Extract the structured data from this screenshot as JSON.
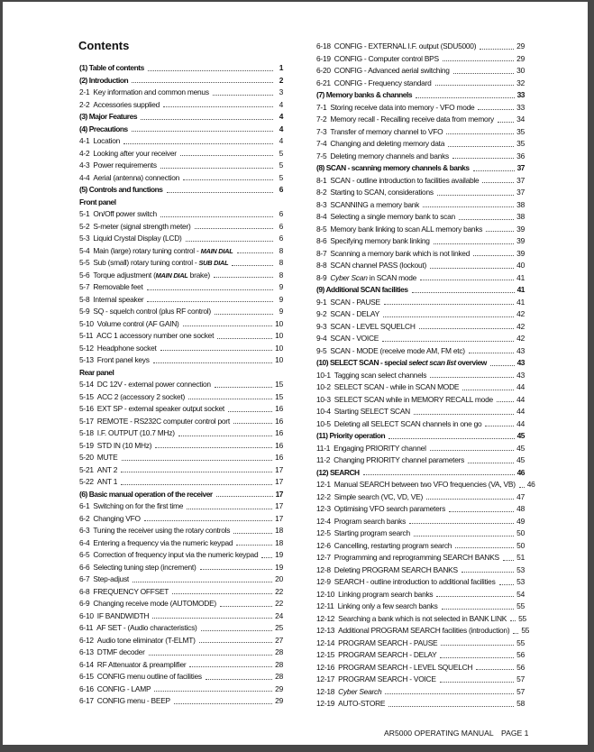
{
  "title": "Contents",
  "footer": {
    "manual": "AR5000 OPERATING MANUAL",
    "page": "PAGE 1"
  },
  "columns": {
    "left": [
      {
        "type": "section",
        "title": "(1) Table of contents",
        "page": "1"
      },
      {
        "type": "section",
        "title": "(2) Introduction",
        "page": "2"
      },
      {
        "type": "item",
        "num": "2-1",
        "title": "Key information and common menus",
        "page": "3"
      },
      {
        "type": "item",
        "num": "2-2",
        "title": "Accessories supplied",
        "page": "4"
      },
      {
        "type": "section",
        "title": "(3) Major Features",
        "page": "4"
      },
      {
        "type": "section",
        "title": "(4) Precautions",
        "page": "4"
      },
      {
        "type": "item",
        "num": "4-1",
        "title": "Location",
        "page": "4"
      },
      {
        "type": "item",
        "num": "4-2",
        "title": "Looking after your receiver",
        "page": "5"
      },
      {
        "type": "item",
        "num": "4-3",
        "title": "Power requirements",
        "page": "5"
      },
      {
        "type": "item",
        "num": "4-4",
        "title": "Aerial (antenna) connection",
        "page": "5"
      },
      {
        "type": "section",
        "title": "(5) Controls and functions",
        "page": "6"
      },
      {
        "type": "subhead",
        "title": "Front panel"
      },
      {
        "type": "item",
        "num": "5-1",
        "title": "On/Off power switch",
        "page": "6"
      },
      {
        "type": "item",
        "num": "5-2",
        "title": "S-meter (signal strength meter)",
        "page": "6"
      },
      {
        "type": "item",
        "num": "5-3",
        "title": "Liquid Crystal Display (LCD)",
        "page": "6"
      },
      {
        "type": "item",
        "num": "5-4",
        "title": "Main (large) rotary tuning control - ",
        "em": "MAIN DIAL",
        "em_style": "bi",
        "page": "8"
      },
      {
        "type": "item",
        "num": "5-5",
        "title": "Sub (small) rotary tuning control - ",
        "em": "SUB DIAL",
        "em_style": "bi",
        "page": "8"
      },
      {
        "type": "item",
        "num": "5-6",
        "title": "Torque adjustment (",
        "em": "MAIN DIAL",
        "em_style": "bi",
        "post": " brake)",
        "page": "8"
      },
      {
        "type": "item",
        "num": "5-7",
        "title": "Removable feet",
        "page": "9"
      },
      {
        "type": "item",
        "num": "5-8",
        "title": "Internal speaker",
        "page": "9"
      },
      {
        "type": "item",
        "num": "5-9",
        "title": "SQ - squelch control (plus RF control)",
        "page": "9"
      },
      {
        "type": "item",
        "num": "5-10",
        "title": "Volume control (AF GAIN)",
        "page": "10"
      },
      {
        "type": "item",
        "num": "5-11",
        "title": "ACC 1  accessory number one socket",
        "page": "10"
      },
      {
        "type": "item",
        "num": "5-12",
        "title": "Headphone socket",
        "page": "10"
      },
      {
        "type": "item",
        "num": "5-13",
        "title": "Front panel keys",
        "page": "10"
      },
      {
        "type": "subhead",
        "title": "Rear panel"
      },
      {
        "type": "item",
        "num": "5-14",
        "title": "DC 12V - external power connection",
        "page": "15"
      },
      {
        "type": "item",
        "num": "5-15",
        "title": "ACC 2  (accessory 2 socket)",
        "page": "15"
      },
      {
        "type": "item",
        "num": "5-16",
        "title": "EXT SP - external speaker output socket",
        "page": "16"
      },
      {
        "type": "item",
        "num": "5-17",
        "title": "REMOTE - RS232C computer control port",
        "page": "16"
      },
      {
        "type": "item",
        "num": "5-18",
        "title": "I.F. OUTPUT (10.7 MHz)",
        "page": "16"
      },
      {
        "type": "item",
        "num": "5-19",
        "title": "STD IN (10 MHz)",
        "page": "16"
      },
      {
        "type": "item",
        "num": "5-20",
        "title": "MUTE",
        "page": "16"
      },
      {
        "type": "item",
        "num": "5-21",
        "title": "ANT 2",
        "page": "17"
      },
      {
        "type": "item",
        "num": "5-22",
        "title": "ANT 1",
        "page": "17"
      },
      {
        "type": "section",
        "title": "(6) Basic manual operation of the receiver",
        "page": "17"
      },
      {
        "type": "item",
        "num": "6-1",
        "title": "Switching on for the first time",
        "page": "17"
      },
      {
        "type": "item",
        "num": "6-2",
        "title": "Changing VFO",
        "page": "17"
      },
      {
        "type": "item",
        "num": "6-3",
        "title": "Tuning the receiver using the rotary controls",
        "page": "18"
      },
      {
        "type": "item",
        "num": "6-4",
        "title": "Entering a frequency via the numeric keypad",
        "page": "18"
      },
      {
        "type": "item",
        "num": "6-5",
        "title": "Correction of frequency input via the numeric keypad",
        "page": "19"
      },
      {
        "type": "item",
        "num": "6-6",
        "title": "Selecting tuning step (increment)",
        "page": "19"
      },
      {
        "type": "item",
        "num": "6-7",
        "title": "Step-adjust",
        "page": "20"
      },
      {
        "type": "item",
        "num": "6-8",
        "title": "FREQUENCY OFFSET",
        "page": "22"
      },
      {
        "type": "item",
        "num": "6-9",
        "title": "Changing receive mode (AUTOMODE)",
        "page": "22"
      },
      {
        "type": "item",
        "num": "6-10",
        "title": "IF BANDWIDTH",
        "page": "24"
      },
      {
        "type": "item",
        "num": "6-11",
        "title": "AF SET - (Audio characteristics)",
        "page": "25"
      },
      {
        "type": "item",
        "num": "6-12",
        "title": "Audio tone eliminator (T-ELMT)",
        "page": "27"
      },
      {
        "type": "item",
        "num": "6-13",
        "title": "DTMF decoder",
        "page": "28"
      },
      {
        "type": "item",
        "num": "6-14",
        "title": "RF Attenuator & preamplifier",
        "page": "28"
      },
      {
        "type": "item",
        "num": "6-15",
        "title": "CONFIG menu outline of facilities",
        "page": "28"
      },
      {
        "type": "item",
        "num": "6-16",
        "title": "CONFIG - LAMP",
        "page": "29"
      },
      {
        "type": "item",
        "num": "6-17",
        "title": "CONFIG menu - BEEP",
        "page": "29"
      }
    ],
    "right": [
      {
        "type": "item",
        "num": "6-18",
        "title": "CONFIG - EXTERNAL I.F. output (SDU5000)",
        "page": "29"
      },
      {
        "type": "item",
        "num": "6-19",
        "title": "CONFIG - Computer control BPS",
        "page": "29"
      },
      {
        "type": "item",
        "num": "6-20",
        "title": "CONFIG - Advanced aerial switching",
        "page": "30"
      },
      {
        "type": "item",
        "num": "6-21",
        "title": "CONFIG - Frequency standard",
        "page": "32"
      },
      {
        "type": "section",
        "title": "(7) Memory banks & channels",
        "page": "33"
      },
      {
        "type": "item",
        "num": "7-1",
        "title": "Storing receive data into memory - VFO mode",
        "page": "33"
      },
      {
        "type": "item",
        "num": "7-2",
        "title": "Memory recall - Recalling receive data from memory",
        "page": "34"
      },
      {
        "type": "item",
        "num": "7-3",
        "title": "Transfer of memory channel to VFO",
        "page": "35"
      },
      {
        "type": "item",
        "num": "7-4",
        "title": "Changing and deleting memory data",
        "page": "35"
      },
      {
        "type": "item",
        "num": "7-5",
        "title": "Deleting memory channels and banks",
        "page": "36"
      },
      {
        "type": "section",
        "title": "(8) SCAN - scanning memory channels & banks",
        "page": "37"
      },
      {
        "type": "item",
        "num": "8-1",
        "title": "SCAN - outline introduction to facilities available",
        "page": "37"
      },
      {
        "type": "item",
        "num": "8-2",
        "title": "Starting to SCAN, considerations",
        "page": "37"
      },
      {
        "type": "item",
        "num": "8-3",
        "title": "SCANNING a memory bank",
        "page": "38"
      },
      {
        "type": "item",
        "num": "8-4",
        "title": "Selecting a single memory bank to scan",
        "page": "38"
      },
      {
        "type": "item",
        "num": "8-5",
        "title": "Memory bank linking to scan ALL memory banks",
        "page": "39"
      },
      {
        "type": "item",
        "num": "8-6",
        "title": "Specifying memory bank linking",
        "page": "39"
      },
      {
        "type": "item",
        "num": "8-7",
        "title": "Scanning a memory bank which is not linked",
        "page": "39"
      },
      {
        "type": "item",
        "num": "8-8",
        "title": "SCAN channel PASS (lockout)",
        "page": "40"
      },
      {
        "type": "item",
        "num": "8-9",
        "title": "",
        "em": "Cyber Scan",
        "em_style": "i",
        "post": " in SCAN mode",
        "page": "41"
      },
      {
        "type": "section",
        "title": "(9) Additional SCAN facilities",
        "page": "41"
      },
      {
        "type": "item",
        "num": "9-1",
        "title": "SCAN - PAUSE",
        "page": "41"
      },
      {
        "type": "item",
        "num": "9-2",
        "title": "SCAN - DELAY",
        "page": "42"
      },
      {
        "type": "item",
        "num": "9-3",
        "title": "SCAN - LEVEL SQUELCH",
        "page": "42"
      },
      {
        "type": "item",
        "num": "9-4",
        "title": "SCAN - VOICE",
        "page": "42"
      },
      {
        "type": "item",
        "num": "9-5",
        "title": "SCAN - MODE (receive mode AM, FM etc)",
        "page": "43"
      },
      {
        "type": "section",
        "title": "(10) SELECT SCAN - special ",
        "em": "select scan list",
        "em_style": "i",
        "post": " overview",
        "page": "43"
      },
      {
        "type": "item",
        "num": "10-1",
        "title": "Tagging scan select channels",
        "page": "43"
      },
      {
        "type": "item",
        "num": "10-2",
        "title": "SELECT SCAN - while in SCAN MODE",
        "page": "44"
      },
      {
        "type": "item",
        "num": "10-3",
        "title": "SELECT SCAN while in MEMORY RECALL mode",
        "page": "44"
      },
      {
        "type": "item",
        "num": "10-4",
        "title": "Starting SELECT SCAN",
        "page": "44"
      },
      {
        "type": "item",
        "num": "10-5",
        "title": "Deleting all SELECT SCAN channels in one go",
        "page": "44"
      },
      {
        "type": "section",
        "title": "(11) Priority operation",
        "page": "45"
      },
      {
        "type": "item",
        "num": "11-1",
        "title": "Engaging PRIORITY channel",
        "page": "45"
      },
      {
        "type": "item",
        "num": "11-2",
        "title": "Changing PRIORITY channel parameters",
        "page": "45"
      },
      {
        "type": "section",
        "title": "(12) SEARCH",
        "page": "46"
      },
      {
        "type": "item",
        "num": "12-1",
        "title": "Manual SEARCH between two VFO frequencies (VA, VB)",
        "page": "46"
      },
      {
        "type": "item",
        "num": "12-2",
        "title": "Simple search (VC, VD, VE)",
        "page": "47"
      },
      {
        "type": "item",
        "num": "12-3",
        "title": "Optimising VFO search parameters",
        "page": "48"
      },
      {
        "type": "item",
        "num": "12-4",
        "title": "Program search banks",
        "page": "49"
      },
      {
        "type": "item",
        "num": "12-5",
        "title": "Starting program search",
        "page": "50"
      },
      {
        "type": "item",
        "num": "12-6",
        "title": "Cancelling, restarting program search",
        "page": "50"
      },
      {
        "type": "item",
        "num": "12-7",
        "title": "Programming and reprogramming SEARCH BANKS",
        "page": "51"
      },
      {
        "type": "item",
        "num": "12-8",
        "title": "Deleting PROGRAM SEARCH BANKS",
        "page": "53"
      },
      {
        "type": "item",
        "num": "12-9",
        "title": "SEARCH - outline introduction to additional facilities",
        "page": "53"
      },
      {
        "type": "item",
        "num": "12-10",
        "title": "Linking program search banks",
        "page": "54"
      },
      {
        "type": "item",
        "num": "12-11",
        "title": "Linking only a few search banks",
        "page": "55"
      },
      {
        "type": "item",
        "num": "12-12",
        "title": "Searching a bank which is not selected in BANK LINK",
        "page": "55"
      },
      {
        "type": "item",
        "num": "12-13",
        "title": "Additional PROGRAM SEARCH facilities (introduction)",
        "page": "55"
      },
      {
        "type": "item",
        "num": "12-14",
        "title": "PROGRAM SEARCH - PAUSE",
        "page": "55"
      },
      {
        "type": "item",
        "num": "12-15",
        "title": "PROGRAM SEARCH - DELAY",
        "page": "56"
      },
      {
        "type": "item",
        "num": "12-16",
        "title": "PROGRAM SEARCH - LEVEL SQUELCH",
        "page": "56"
      },
      {
        "type": "item",
        "num": "12-17",
        "title": "PROGRAM SEARCH - VOICE",
        "page": "57"
      },
      {
        "type": "item",
        "num": "12-18",
        "title": "",
        "em": "Cyber Search",
        "em_style": "i",
        "page": "57"
      },
      {
        "type": "item",
        "num": "12-19",
        "title": "AUTO-STORE",
        "page": "58"
      }
    ]
  }
}
